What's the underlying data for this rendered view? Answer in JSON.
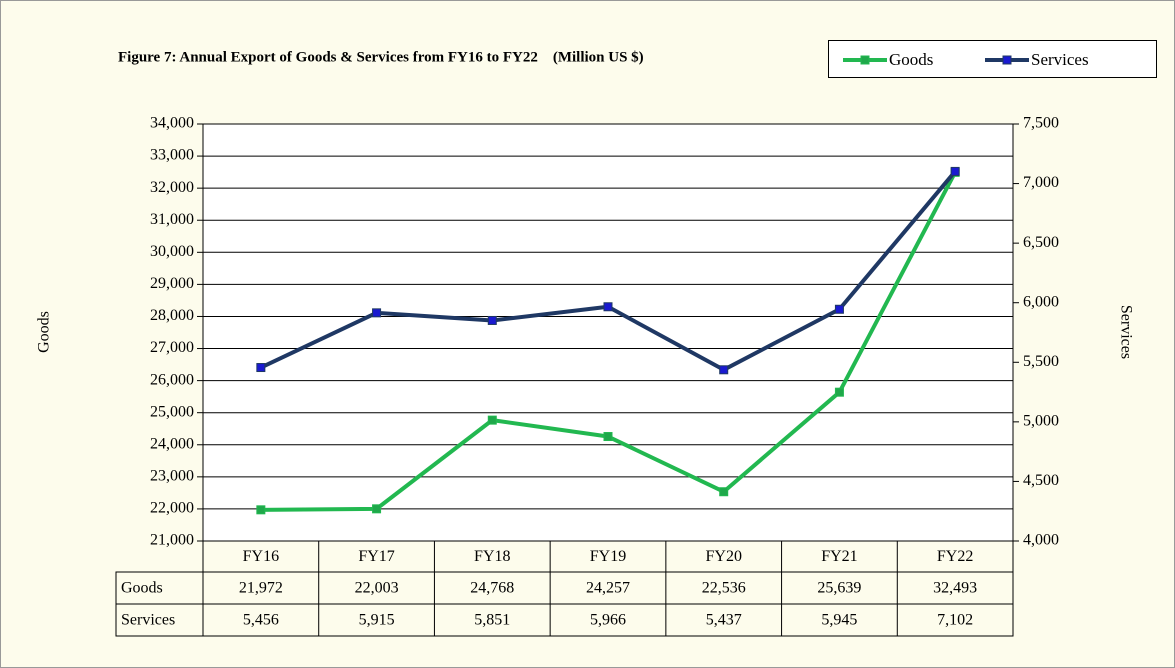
{
  "chart_data": {
    "type": "line",
    "title": "Figure 7: Annual Export of Goods & Services from FY16 to FY22    (Million US $)",
    "ylabel": "Goods",
    "y2label": "Services",
    "categories": [
      "FY16",
      "FY17",
      "FY18",
      "FY19",
      "FY20",
      "FY21",
      "FY22"
    ],
    "series": [
      {
        "name": "Goods",
        "color": "#22b850",
        "marker_color": "#1fa84a",
        "axis": "y",
        "values": [
          21972,
          22003,
          24768,
          24257,
          22536,
          25639,
          32493
        ],
        "value_labels": [
          "21,972",
          "22,003",
          "24,768",
          "24,257",
          "22,536",
          "25,639",
          "32,493"
        ]
      },
      {
        "name": "Services",
        "color": "#1f3864",
        "marker_color": "#1a1ad0",
        "axis": "y2",
        "values": [
          5456,
          5915,
          5851,
          5966,
          5437,
          5945,
          7102
        ],
        "value_labels": [
          "5,456",
          "5,915",
          "5,851",
          "5,966",
          "5,437",
          "5,945",
          "7,102"
        ]
      }
    ],
    "ylim": [
      21000,
      34000
    ],
    "yticks": [
      {
        "value": 21000,
        "label": "21,000"
      },
      {
        "value": 22000,
        "label": "22,000"
      },
      {
        "value": 23000,
        "label": "23,000"
      },
      {
        "value": 24000,
        "label": "24,000"
      },
      {
        "value": 25000,
        "label": "25,000"
      },
      {
        "value": 26000,
        "label": "26,000"
      },
      {
        "value": 27000,
        "label": "27,000"
      },
      {
        "value": 28000,
        "label": "28,000"
      },
      {
        "value": 29000,
        "label": "29,000"
      },
      {
        "value": 30000,
        "label": "30,000"
      },
      {
        "value": 31000,
        "label": "31,000"
      },
      {
        "value": 32000,
        "label": "32,000"
      },
      {
        "value": 33000,
        "label": "33,000"
      },
      {
        "value": 34000,
        "label": "34,000"
      }
    ],
    "y2lim": [
      4000,
      7500
    ],
    "y2ticks": [
      {
        "value": 4000,
        "label": "4,000"
      },
      {
        "value": 4500,
        "label": "4,500"
      },
      {
        "value": 5000,
        "label": "5,000"
      },
      {
        "value": 5500,
        "label": "5,500"
      },
      {
        "value": 6000,
        "label": "6,000"
      },
      {
        "value": 6500,
        "label": "6,500"
      },
      {
        "value": 7000,
        "label": "7,000"
      },
      {
        "value": 7500,
        "label": "7,500"
      }
    ],
    "grid": true,
    "legend": "top-right"
  }
}
